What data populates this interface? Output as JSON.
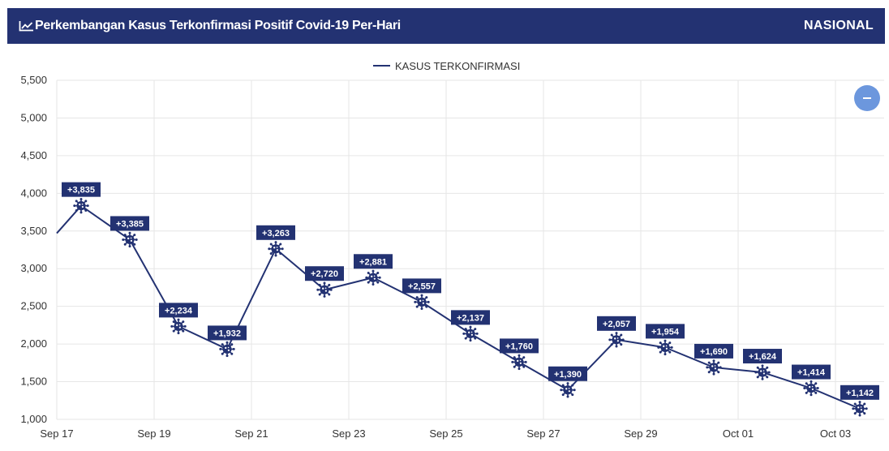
{
  "header": {
    "title": "Perkembangan Kasus Terkonfirmasi Positif Covid-19 Per-Hari",
    "scope": "NASIONAL",
    "title_icon": "line-chart-icon"
  },
  "controls": {
    "zoom_out_icon": "minus-icon"
  },
  "colors": {
    "header_bg": "#233272",
    "series": "#233272",
    "label_bg": "#233272",
    "zoom_button": "#6c97dd",
    "grid": "#e6e6e6"
  },
  "chart_data": {
    "type": "line",
    "title": "",
    "xlabel": "",
    "ylabel": "",
    "ylim": [
      1000,
      5500
    ],
    "yticks": [
      1000,
      1500,
      2000,
      2500,
      3000,
      3500,
      4000,
      4500,
      5000,
      5500
    ],
    "ytick_labels": [
      "1,000",
      "1,500",
      "2,000",
      "2,500",
      "3,000",
      "3,500",
      "4,000",
      "4,500",
      "5,000",
      "5,500"
    ],
    "xlim": [
      "2020-09-17",
      "2020-10-04"
    ],
    "xticks": [
      "2020-09-17",
      "2020-09-19",
      "2020-09-21",
      "2020-09-23",
      "2020-09-25",
      "2020-09-27",
      "2020-09-29",
      "2020-10-01",
      "2020-10-03"
    ],
    "xtick_labels": [
      "Sep 17",
      "Sep 19",
      "Sep 21",
      "Sep 23",
      "Sep 25",
      "Sep 27",
      "Sep 29",
      "Oct 01",
      "Oct 03"
    ],
    "grid": true,
    "legend": "top-center",
    "series": [
      {
        "name": "KASUS TERKONFIRMASI",
        "marker": "virus-icon",
        "x": [
          "2020-09-17",
          "2020-09-17T12:00",
          "2020-09-18T12:00",
          "2020-09-19T12:00",
          "2020-09-20T12:00",
          "2020-09-21T12:00",
          "2020-09-22T12:00",
          "2020-09-23T12:00",
          "2020-09-24T12:00",
          "2020-09-25T12:00",
          "2020-09-26T12:00",
          "2020-09-27T12:00",
          "2020-09-28T12:00",
          "2020-09-29T12:00",
          "2020-09-30T12:00",
          "2020-10-01T12:00",
          "2020-10-02T12:00",
          "2020-10-03T12:00"
        ],
        "values": [
          3470,
          3835,
          3385,
          2234,
          1932,
          3263,
          2720,
          2881,
          2557,
          2137,
          1760,
          1390,
          2057,
          1954,
          1690,
          1624,
          1414,
          1142
        ],
        "labels": [
          null,
          "+3,835",
          "+3,385",
          "+2,234",
          "+1,932",
          "+3,263",
          "+2,720",
          "+2,881",
          "+2,557",
          "+2,137",
          "+1,760",
          "+1,390",
          "+2,057",
          "+1,954",
          "+1,690",
          "+1,624",
          "+1,414",
          "+1,142"
        ]
      }
    ]
  }
}
